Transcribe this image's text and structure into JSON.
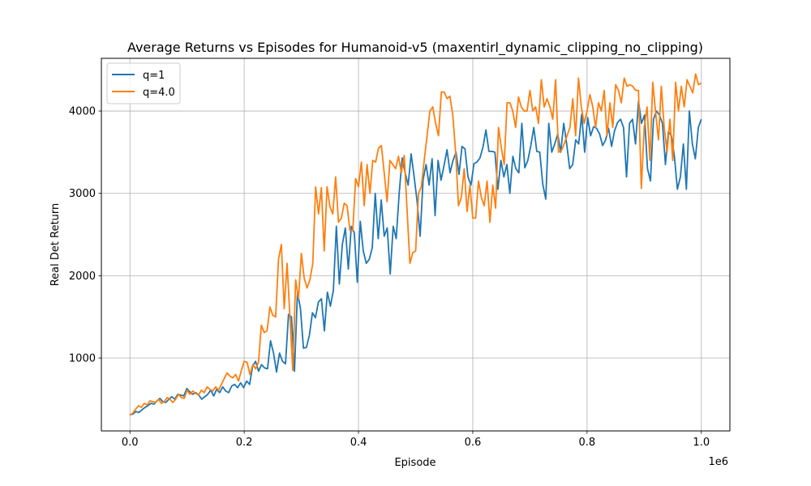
{
  "chart_data": {
    "type": "line",
    "title": "Average Returns vs Episodes for Humanoid-v5 (maxentirl_dynamic_clipping_no_clipping)",
    "xlabel": "Episode",
    "ylabel": "Real Det Return",
    "x_offset_label": "1e6",
    "xlim": [
      -50000,
      1050000
    ],
    "ylim": [
      115,
      4640
    ],
    "xticks": [
      0,
      200000,
      400000,
      600000,
      800000,
      1000000
    ],
    "xtick_labels": [
      "0.0",
      "0.2",
      "0.4",
      "0.6",
      "0.8",
      "1.0"
    ],
    "yticks": [
      1000,
      2000,
      3000,
      4000
    ],
    "ytick_labels": [
      "1000",
      "2000",
      "3000",
      "4000"
    ],
    "grid": true,
    "legend_position": "top-left",
    "x_start": 0,
    "x_end": 1000000,
    "series": [
      {
        "name": "q=1",
        "color": "#1f77b4",
        "values": [
          310,
          320,
          350,
          340,
          370,
          400,
          420,
          450,
          440,
          480,
          510,
          470,
          460,
          500,
          530,
          500,
          560,
          550,
          540,
          630,
          590,
          560,
          580,
          550,
          500,
          530,
          560,
          610,
          540,
          620,
          580,
          650,
          600,
          580,
          660,
          680,
          640,
          700,
          640,
          720,
          680,
          900,
          960,
          840,
          920,
          880,
          870,
          1210,
          1060,
          830,
          1060,
          960,
          930,
          1530,
          1500,
          840,
          1800,
          1600,
          1120,
          1130,
          1280,
          1550,
          1490,
          1680,
          1720,
          1330,
          1800,
          1630,
          1820,
          2600,
          1900,
          2380,
          2580,
          2080,
          2600,
          2520,
          1920,
          2660,
          2300,
          2150,
          2200,
          2340,
          3000,
          2450,
          2920,
          2480,
          2580,
          2020,
          2600,
          2450,
          3000,
          3430,
          3250,
          3100,
          3480,
          3200,
          2900,
          2480,
          3170,
          3350,
          3100,
          3420,
          2730,
          3400,
          3160,
          3340,
          3530,
          3250,
          3400,
          3500,
          3230,
          3570,
          3540,
          3200,
          3100,
          3360,
          3380,
          3430,
          3560,
          3770,
          3510,
          3510,
          3500,
          3050,
          3400,
          3200,
          3350,
          3000,
          3450,
          3300,
          3250,
          3850,
          3310,
          3400,
          3580,
          3800,
          3510,
          3500,
          3110,
          2930,
          3850,
          3500,
          3600,
          3720,
          3500,
          3850,
          3600,
          3300,
          3350,
          3650,
          3600,
          3960,
          3500,
          3920,
          3700,
          3810,
          3790,
          3720,
          3580,
          3650,
          3790,
          3570,
          3760,
          3860,
          3900,
          3800,
          3200,
          3850,
          3900,
          3600,
          4120,
          3850,
          3950,
          3300,
          3150,
          3900,
          4000,
          3950,
          3850,
          3350,
          3750,
          3700,
          3450,
          3050,
          3200,
          3600,
          3050,
          4000,
          3600,
          3420,
          3800,
          3900
        ]
      },
      {
        "name": "q=4.0",
        "color": "#ff7f0e",
        "values": [
          310,
          330,
          380,
          420,
          400,
          450,
          430,
          480,
          470,
          460,
          500,
          450,
          470,
          520,
          500,
          460,
          500,
          560,
          520,
          510,
          610,
          560,
          600,
          570,
          550,
          610,
          580,
          650,
          620,
          600,
          650,
          610,
          680,
          750,
          820,
          780,
          760,
          800,
          720,
          850,
          960,
          950,
          800,
          920,
          870,
          950,
          1400,
          1310,
          1330,
          1620,
          1520,
          1500,
          2200,
          2380,
          1600,
          2150,
          1500,
          850,
          1950,
          1720,
          2270,
          1970,
          1850,
          1950,
          2150,
          3080,
          2750,
          3070,
          2300,
          3080,
          2840,
          2750,
          3200,
          2650,
          2700,
          2880,
          2850,
          2550,
          2550,
          3180,
          3080,
          3380,
          2850,
          3350,
          3000,
          3400,
          3380,
          3550,
          3580,
          3250,
          2900,
          3400,
          3350,
          3300,
          3450,
          3250,
          3460,
          2800,
          2150,
          2280,
          2300,
          3000,
          3080,
          3400,
          3700,
          4000,
          4050,
          3850,
          3700,
          4230,
          4230,
          4150,
          4180,
          3950,
          3500,
          2850,
          2950,
          3300,
          2780,
          3100,
          2700,
          2700,
          3150,
          2950,
          2850,
          3150,
          2650,
          3100,
          2820,
          3800,
          3550,
          3350,
          4100,
          4100,
          4000,
          3800,
          4170,
          4050,
          4000,
          4000,
          4250,
          4000,
          4050,
          3850,
          4380,
          4050,
          4150,
          4050,
          3900,
          4380,
          3500,
          3520,
          3600,
          3700,
          3800,
          4150,
          3700,
          4400,
          4050,
          3850,
          4000,
          4200,
          4050,
          3800,
          4100,
          4000,
          4250,
          3700,
          4100,
          3800,
          4320,
          4250,
          4100,
          4400,
          4300,
          4320,
          4300,
          4250,
          4250,
          3060,
          3800,
          4050,
          3400,
          4350,
          3980,
          3650,
          4300,
          3800,
          3500,
          3900,
          3400,
          4350,
          4000,
          4300,
          4050,
          4380,
          4300,
          4220,
          4450,
          4320,
          4340
        ]
      }
    ]
  }
}
